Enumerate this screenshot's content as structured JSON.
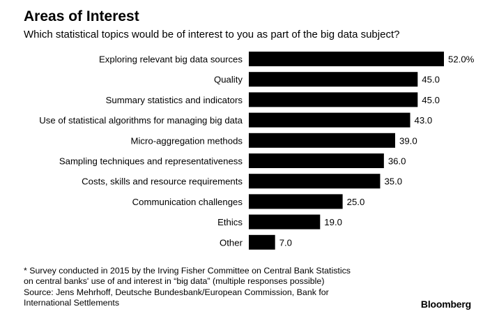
{
  "chart_data": {
    "type": "bar",
    "orientation": "horizontal",
    "title": "Areas of Interest",
    "subtitle": "Which statistical topics would be of interest to you as part of the big data subject?",
    "categories": [
      "Exploring relevant big data sources",
      "Quality",
      "Summary statistics and indicators",
      "Use of statistical algorithms for managing big data",
      "Micro-aggregation methods",
      "Sampling techniques and representativeness",
      "Costs, skills and resource requirements",
      "Communication challenges",
      "Ethics",
      "Other"
    ],
    "values": [
      52.0,
      45.0,
      45.0,
      43.0,
      39.0,
      36.0,
      35.0,
      25.0,
      19.0,
      7.0
    ],
    "value_labels": [
      "52.0%",
      "45.0",
      "45.0",
      "43.0",
      "39.0",
      "36.0",
      "35.0",
      "25.0",
      "19.0",
      "7.0"
    ],
    "xlim": [
      0,
      52
    ],
    "bar_color": "#000000",
    "grid": false
  },
  "footnote": {
    "lines": [
      "* Survey conducted in 2015 by the Irving Fisher Committee on Central Bank Statistics",
      "on central banks' use of and interest in “big data” (multiple responses possible)",
      "Source: Jens Mehrhoff, Deutsche Bundesbank/European Commission, Bank for",
      "International Settlements"
    ]
  },
  "brand": "Bloomberg"
}
